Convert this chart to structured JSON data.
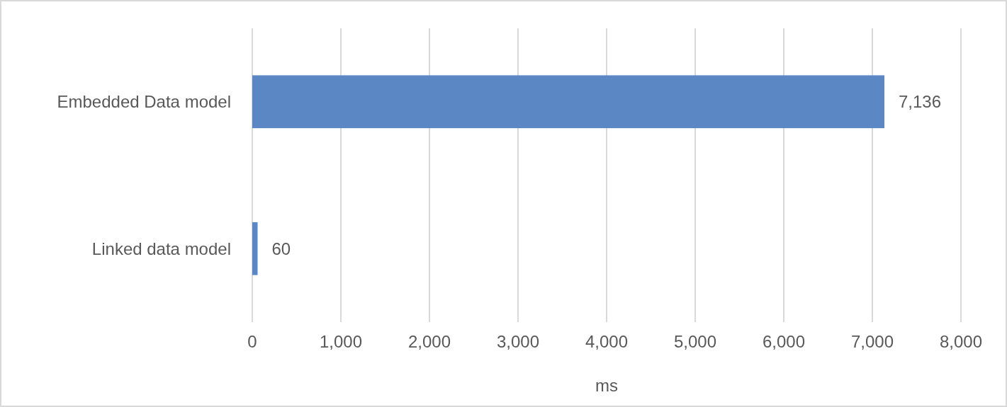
{
  "chart_data": {
    "type": "bar",
    "orientation": "horizontal",
    "categories": [
      "Embedded Data model",
      "Linked data model"
    ],
    "values": [
      7136,
      60
    ],
    "color": "#5b87c5",
    "xlabel": "ms",
    "xlim": [
      0,
      8000
    ],
    "xticks": [
      {
        "value": 0,
        "label": "0"
      },
      {
        "value": 1000,
        "label": "1,000"
      },
      {
        "value": 2000,
        "label": "2,000"
      },
      {
        "value": 3000,
        "label": "3,000"
      },
      {
        "value": 4000,
        "label": "4,000"
      },
      {
        "value": 5000,
        "label": "5,000"
      },
      {
        "value": 6000,
        "label": "6,000"
      },
      {
        "value": 7000,
        "label": "7,000"
      },
      {
        "value": 8000,
        "label": "8,000"
      }
    ],
    "grid": "x",
    "value_labels": [
      "7,136",
      "60"
    ]
  }
}
